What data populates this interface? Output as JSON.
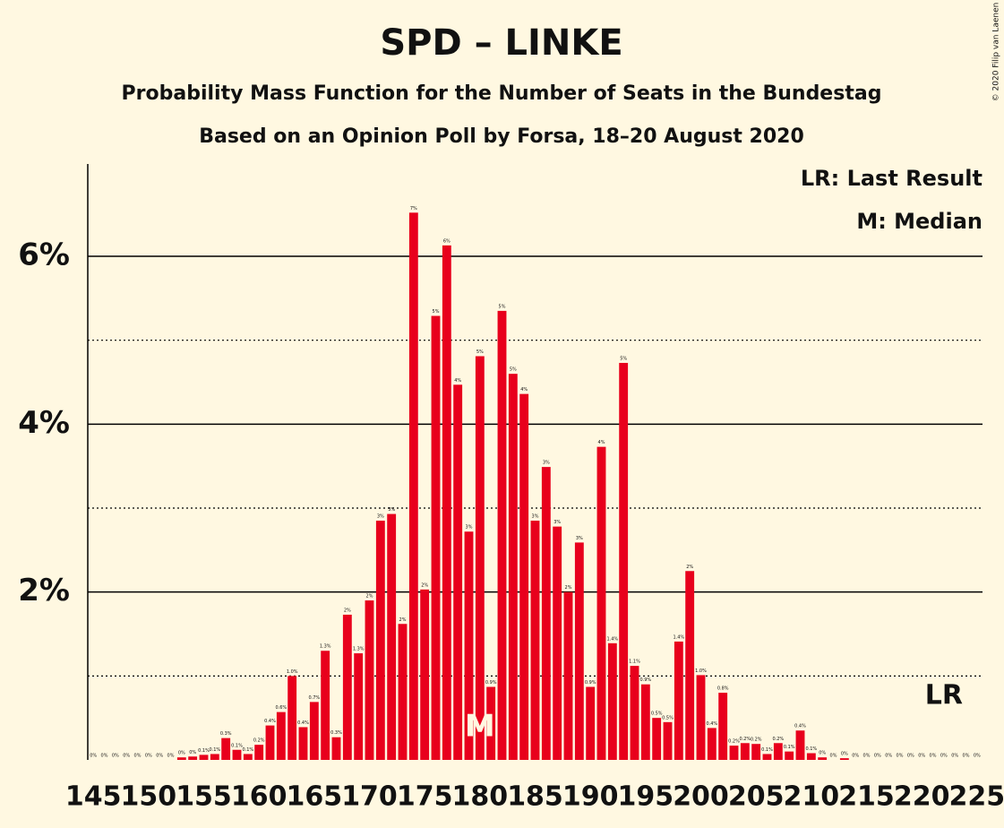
{
  "chart_data": {
    "type": "bar",
    "title": "SPD – LINKE",
    "subtitle": "Probability Mass Function for the Number of Seats in the Bundestag",
    "subtitle2": "Based on an Opinion Poll by Forsa, 18–20 August 2020",
    "copyright": "© 2020 Filip van Laenen",
    "legend": [
      "LR: Last Result",
      "M: Median"
    ],
    "color": "#e8001c",
    "x": [
      145,
      146,
      147,
      148,
      149,
      150,
      151,
      152,
      153,
      154,
      155,
      156,
      157,
      158,
      159,
      160,
      161,
      162,
      163,
      164,
      165,
      166,
      167,
      168,
      169,
      170,
      171,
      172,
      173,
      174,
      175,
      176,
      177,
      178,
      179,
      180,
      181,
      182,
      183,
      184,
      185,
      186,
      187,
      188,
      189,
      190,
      191,
      192,
      193,
      194,
      195,
      196,
      197,
      198,
      199,
      200,
      201,
      202,
      203,
      204,
      205,
      206,
      207,
      208,
      209,
      210,
      211,
      212,
      213,
      214,
      215,
      216,
      217,
      218,
      219,
      220,
      221,
      222,
      223,
      224,
      225
    ],
    "values": [
      0,
      0,
      0,
      0,
      0,
      0,
      0,
      0,
      0.03,
      0.04,
      0.06,
      0.07,
      0.26,
      0.12,
      0.07,
      0.18,
      0.41,
      0.57,
      1.0,
      0.39,
      0.69,
      1.3,
      0.27,
      1.73,
      1.27,
      1.9,
      2.85,
      2.93,
      1.62,
      6.52,
      2.03,
      5.29,
      6.13,
      4.47,
      2.72,
      4.81,
      0.87,
      5.35,
      4.6,
      4.36,
      2.85,
      3.49,
      2.78,
      2.0,
      2.59,
      0.87,
      3.73,
      1.39,
      4.73,
      1.12,
      0.9,
      0.5,
      0.45,
      1.41,
      2.25,
      1.01,
      0.38,
      0.8,
      0.17,
      0.2,
      0.19,
      0.07,
      0.2,
      0.1,
      0.35,
      0.08,
      0.03,
      0,
      0.02,
      0,
      0,
      0,
      0,
      0,
      0,
      0,
      0,
      0,
      0,
      0,
      0
    ],
    "value_labels": [
      "0%",
      "0%",
      "0%",
      "0%",
      "0%",
      "0%",
      "0%",
      "0%",
      "0%",
      "0%",
      "0.1%",
      "0.1%",
      "0.3%",
      "0.1%",
      "0.1%",
      "0.2%",
      "0.4%",
      "0.6%",
      "1.0%",
      "0.4%",
      "0.7%",
      "1.3%",
      "0.3%",
      "2%",
      "1.3%",
      "2%",
      "3%",
      "3%",
      "2%",
      "7%",
      "2%",
      "5%",
      "6%",
      "4%",
      "3%",
      "5%",
      "0.9%",
      "5%",
      "5%",
      "4%",
      "3%",
      "3%",
      "3%",
      "2%",
      "3%",
      "0.9%",
      "4%",
      "1.4%",
      "5%",
      "1.1%",
      "0.9%",
      "0.5%",
      "0.5%",
      "1.4%",
      "2%",
      "1.0%",
      "0.4%",
      "0.8%",
      "0.2%",
      "0.2%",
      "0.2%",
      "0.1%",
      "0.2%",
      "0.1%",
      "0.4%",
      "0.1%",
      "0%",
      "0%",
      "0%",
      "0%",
      "0%",
      "0%",
      "0%",
      "0%",
      "0%",
      "0%",
      "0%",
      "0%",
      "0%",
      "0%",
      "0%"
    ],
    "xlim": [
      144.5,
      225.5
    ],
    "xticks": [
      145,
      150,
      155,
      160,
      165,
      170,
      175,
      180,
      185,
      190,
      195,
      200,
      205,
      210,
      215,
      220,
      225
    ],
    "ylim": [
      0,
      7.1
    ],
    "yticks": [
      {
        "value": 2,
        "label": "2%"
      },
      {
        "value": 4,
        "label": "4%"
      },
      {
        "value": 6,
        "label": "6%"
      }
    ],
    "minor_yticks": [
      1,
      3,
      5
    ],
    "median": {
      "seat": 180,
      "label": "M"
    },
    "last_result": {
      "seat": 222,
      "label": "LR"
    }
  }
}
